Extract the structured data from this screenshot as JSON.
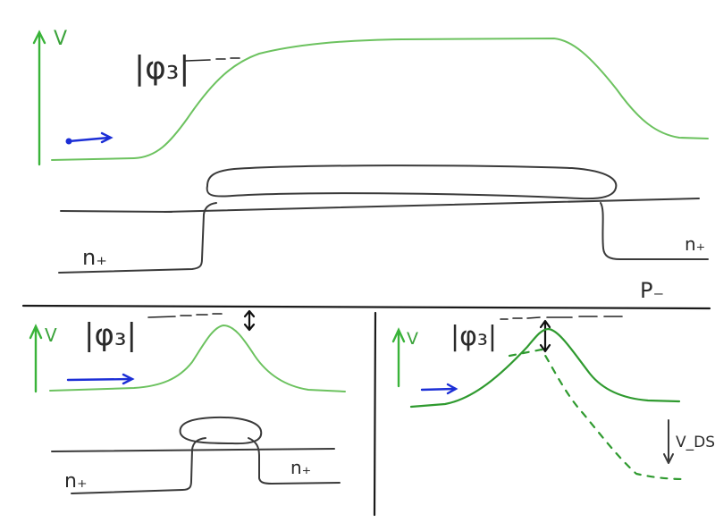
{
  "panel_top": {
    "axis_label": "V",
    "potential_label": "|φ₃|",
    "region_left": "n₊",
    "region_right": "n₊",
    "substrate_label": "P₋"
  },
  "panel_bottom_left": {
    "axis_label": "V",
    "potential_label": "|φ₃|",
    "region_left": "n₊",
    "region_right": "n₊"
  },
  "panel_bottom_right": {
    "axis_label": "V",
    "potential_label": "|φ₃|",
    "voltage_label": "V_DS"
  },
  "colors": {
    "potential_curve": "#6cc25f",
    "potential_curve_dark": "#2f9a2f",
    "axis": "#39b339",
    "electron_arrow": "#1c2fd6",
    "ink": "#3a3a3a"
  }
}
